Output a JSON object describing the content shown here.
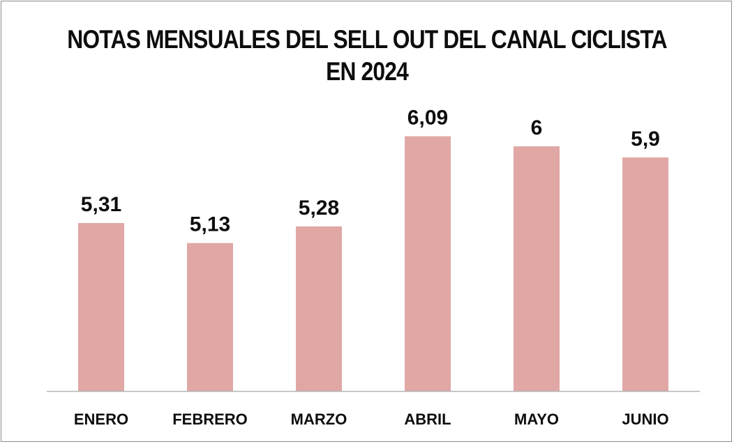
{
  "chart_data": {
    "type": "bar",
    "title_lines": [
      "NOTAS MENSUALES DEL SELL OUT DEL CANAL CICLISTA",
      "EN 2024"
    ],
    "categories": [
      "ENERO",
      "FEBRERO",
      "MARZO",
      "ABRIL",
      "MAYO",
      "JUNIO"
    ],
    "values": [
      5.31,
      5.13,
      5.28,
      6.09,
      6,
      5.9
    ],
    "value_labels": [
      "5,31",
      "5,13",
      "5,28",
      "6,09",
      "6",
      "5,9"
    ],
    "ylim": [
      3.8,
      6.25
    ],
    "bar_color": "#e0a7a5",
    "axis_color": "#b5b5b5",
    "grid": false
  }
}
